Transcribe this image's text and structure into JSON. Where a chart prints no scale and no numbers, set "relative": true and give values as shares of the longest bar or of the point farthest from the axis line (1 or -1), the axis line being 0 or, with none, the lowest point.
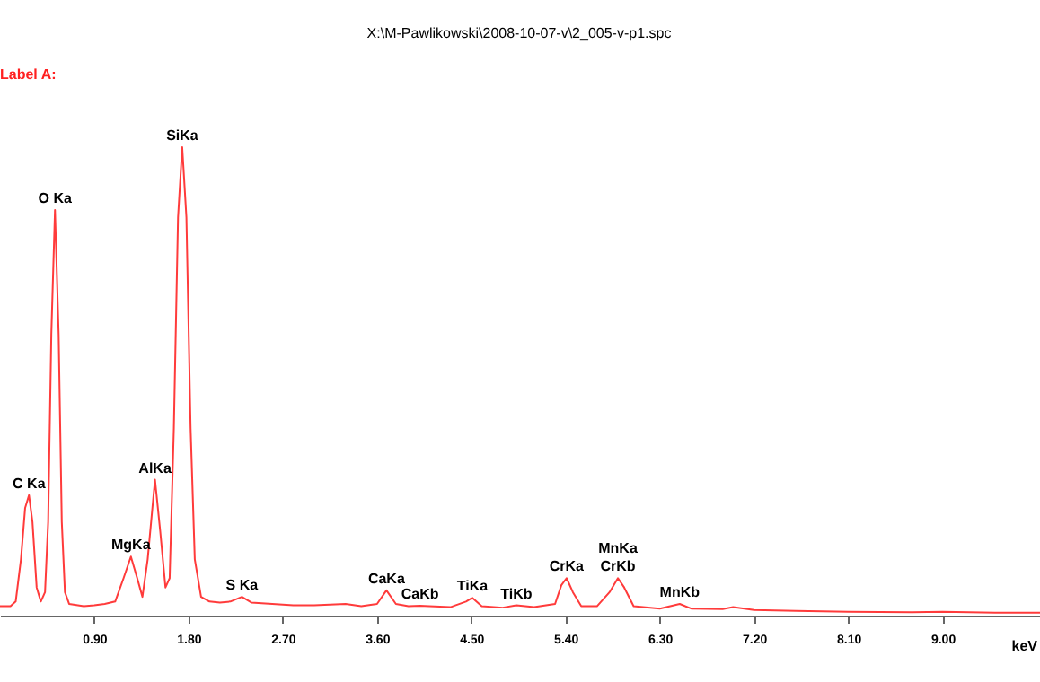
{
  "chart_data": {
    "type": "line",
    "title": "X:\\M-Pawlikowski\\2008-10-07-v\\2_005-v-p1.spc",
    "xlabel": "keV",
    "relative": true,
    "color": "#ff3b3b",
    "tick_labels": "x",
    "xlim": [
      0,
      9.93
    ],
    "xticks": [
      {
        "value": 0.9,
        "label": "0.90"
      },
      {
        "value": 1.8,
        "label": "1.80"
      },
      {
        "value": 2.7,
        "label": "2.70"
      },
      {
        "value": 3.6,
        "label": "3.60"
      },
      {
        "value": 4.5,
        "label": "4.50"
      },
      {
        "value": 5.4,
        "label": "5.40"
      },
      {
        "value": 6.3,
        "label": "6.30"
      },
      {
        "value": 7.2,
        "label": "7.20"
      },
      {
        "value": 8.1,
        "label": "8.10"
      },
      {
        "value": 9.0,
        "label": "9.00"
      }
    ],
    "x": [
      0,
      0.1,
      0.15,
      0.2,
      0.24,
      0.277,
      0.31,
      0.35,
      0.39,
      0.43,
      0.46,
      0.49,
      0.525,
      0.56,
      0.59,
      0.62,
      0.66,
      0.8,
      0.9,
      1.0,
      1.1,
      1.18,
      1.25,
      1.31,
      1.36,
      1.41,
      1.48,
      1.53,
      1.58,
      1.62,
      1.66,
      1.7,
      1.74,
      1.78,
      1.82,
      1.86,
      1.92,
      2.0,
      2.1,
      2.2,
      2.31,
      2.4,
      2.6,
      2.8,
      3.0,
      3.3,
      3.45,
      3.6,
      3.69,
      3.78,
      3.9,
      4.01,
      4.1,
      4.3,
      4.45,
      4.51,
      4.6,
      4.8,
      4.93,
      5.1,
      5.3,
      5.36,
      5.41,
      5.47,
      5.55,
      5.7,
      5.82,
      5.9,
      5.96,
      6.05,
      6.3,
      6.49,
      6.6,
      6.9,
      7.0,
      7.2,
      7.6,
      8.1,
      8.7,
      9.0,
      9.5,
      9.93
    ],
    "values": [
      0.02,
      0.02,
      0.03,
      0.12,
      0.23,
      0.257,
      0.2,
      0.06,
      0.03,
      0.05,
      0.2,
      0.6,
      0.866,
      0.6,
      0.2,
      0.05,
      0.025,
      0.02,
      0.022,
      0.025,
      0.03,
      0.08,
      0.126,
      0.08,
      0.04,
      0.12,
      0.29,
      0.18,
      0.06,
      0.08,
      0.4,
      0.85,
      1,
      0.85,
      0.4,
      0.12,
      0.04,
      0.03,
      0.028,
      0.03,
      0.04,
      0.028,
      0.025,
      0.022,
      0.022,
      0.025,
      0.02,
      0.025,
      0.054,
      0.025,
      0.02,
      0.021,
      0.02,
      0.018,
      0.03,
      0.038,
      0.02,
      0.017,
      0.022,
      0.018,
      0.025,
      0.065,
      0.08,
      0.05,
      0.02,
      0.02,
      0.05,
      0.08,
      0.06,
      0.02,
      0.015,
      0.025,
      0.015,
      0.014,
      0.018,
      0.012,
      0.01,
      0.008,
      0.007,
      0.008,
      0.006,
      0.006
    ],
    "annotations": [
      "Label A:",
      {
        "text": "C Ka",
        "x": 0.277,
        "y": 0.257
      },
      {
        "text": "O Ka",
        "x": 0.525,
        "y": 0.866
      },
      {
        "text": "MgKa",
        "x": 1.25,
        "y": 0.126
      },
      {
        "text": "AlKa",
        "x": 1.48,
        "y": 0.29
      },
      {
        "text": "SiKa",
        "x": 1.74,
        "y": 1
      },
      {
        "text": "S Ka",
        "x": 2.31,
        "y": 0.04
      },
      {
        "text": "CaKa",
        "x": 3.69,
        "y": 0.054
      },
      {
        "text": "CaKb",
        "x": 4.01,
        "y": 0.021
      },
      {
        "text": "TiKa",
        "x": 4.51,
        "y": 0.038
      },
      {
        "text": "TiKb",
        "x": 4.93,
        "y": 0.022
      },
      {
        "text": "CrKa",
        "x": 5.41,
        "y": 0.08
      },
      {
        "text": "CrKb",
        "x": 5.9,
        "y": 0.08
      },
      {
        "text": "MnKa",
        "x": 5.9,
        "y": 0.08
      },
      {
        "text": "MnKb",
        "x": 6.49,
        "y": 0.025
      }
    ]
  }
}
